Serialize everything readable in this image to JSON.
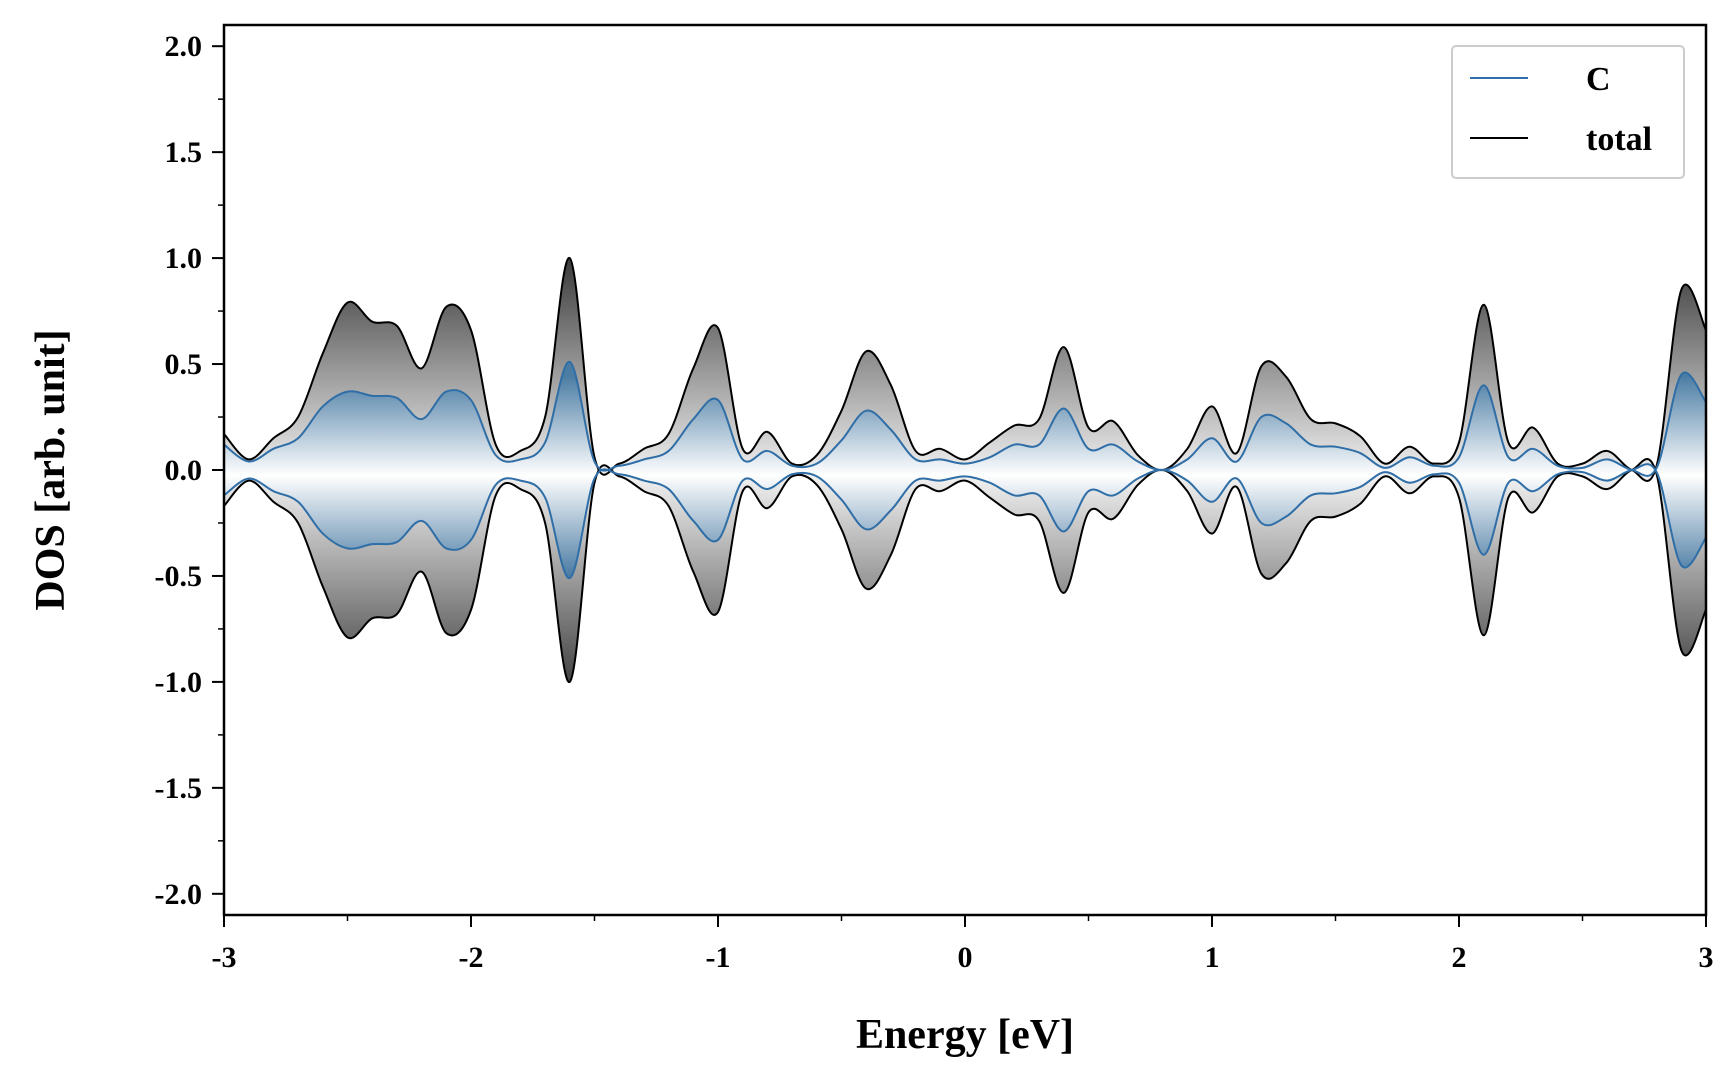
{
  "chart_data": {
    "type": "area",
    "xlabel": "Energy [eV]",
    "ylabel": "DOS [arb. unit]",
    "xlim": [
      -3,
      3
    ],
    "ylim": [
      -2.1,
      2.1
    ],
    "x_ticks": [
      -3,
      -2,
      -1,
      0,
      1,
      2,
      3
    ],
    "x_tick_labels": [
      "-3",
      "-2",
      "-1",
      "0",
      "1",
      "2",
      "3"
    ],
    "y_ticks": [
      2.0,
      1.5,
      1.0,
      0.5,
      0.0,
      -0.5,
      -1.0,
      -1.5,
      -2.0
    ],
    "y_tick_labels": [
      "2.0",
      "1.5",
      "1.0",
      "0.5",
      "0.0",
      "-0.5",
      "-1.0",
      "-1.5",
      "-2.0"
    ],
    "mirrored_about_zero": true,
    "grid": false,
    "legend_position": "top-right",
    "series": [
      {
        "name": "C",
        "color": "#2f6ea6",
        "fill": "blue-gradient",
        "x": [
          -3.0,
          -2.9,
          -2.8,
          -2.7,
          -2.6,
          -2.5,
          -2.4,
          -2.3,
          -2.2,
          -2.1,
          -2.0,
          -1.9,
          -1.8,
          -1.7,
          -1.6,
          -1.5,
          -1.4,
          -1.3,
          -1.2,
          -1.1,
          -1.0,
          -0.9,
          -0.8,
          -0.7,
          -0.6,
          -0.5,
          -0.4,
          -0.3,
          -0.2,
          -0.1,
          0.0,
          0.1,
          0.2,
          0.3,
          0.4,
          0.5,
          0.6,
          0.7,
          0.8,
          0.9,
          1.0,
          1.1,
          1.2,
          1.3,
          1.4,
          1.5,
          1.6,
          1.7,
          1.8,
          1.9,
          2.0,
          2.1,
          2.2,
          2.3,
          2.4,
          2.5,
          2.6,
          2.7,
          2.8,
          2.9,
          3.0
        ],
        "y": [
          0.12,
          0.04,
          0.1,
          0.15,
          0.3,
          0.37,
          0.35,
          0.34,
          0.24,
          0.37,
          0.33,
          0.07,
          0.05,
          0.13,
          0.51,
          0.04,
          0.02,
          0.05,
          0.09,
          0.24,
          0.33,
          0.05,
          0.09,
          0.02,
          0.03,
          0.14,
          0.28,
          0.19,
          0.05,
          0.05,
          0.03,
          0.06,
          0.12,
          0.12,
          0.29,
          0.1,
          0.12,
          0.04,
          0.0,
          0.05,
          0.15,
          0.04,
          0.25,
          0.22,
          0.12,
          0.11,
          0.08,
          0.01,
          0.06,
          0.02,
          0.06,
          0.4,
          0.06,
          0.1,
          0.02,
          0.01,
          0.05,
          0.0,
          0.01,
          0.45,
          0.32
        ]
      },
      {
        "name": "total",
        "color": "#000000",
        "fill": "gray-gradient",
        "x": [
          -3.0,
          -2.9,
          -2.8,
          -2.7,
          -2.6,
          -2.5,
          -2.4,
          -2.3,
          -2.2,
          -2.1,
          -2.0,
          -1.9,
          -1.8,
          -1.7,
          -1.6,
          -1.5,
          -1.4,
          -1.3,
          -1.2,
          -1.1,
          -1.0,
          -0.9,
          -0.8,
          -0.7,
          -0.6,
          -0.5,
          -0.4,
          -0.3,
          -0.2,
          -0.1,
          0.0,
          0.1,
          0.2,
          0.3,
          0.4,
          0.5,
          0.6,
          0.7,
          0.8,
          0.9,
          1.0,
          1.1,
          1.2,
          1.3,
          1.4,
          1.5,
          1.6,
          1.7,
          1.8,
          1.9,
          2.0,
          2.1,
          2.2,
          2.3,
          2.4,
          2.5,
          2.6,
          2.7,
          2.8,
          2.9,
          3.0
        ],
        "y": [
          0.17,
          0.05,
          0.15,
          0.25,
          0.55,
          0.79,
          0.7,
          0.68,
          0.48,
          0.77,
          0.66,
          0.12,
          0.09,
          0.25,
          1.0,
          0.06,
          0.03,
          0.1,
          0.17,
          0.48,
          0.67,
          0.1,
          0.18,
          0.03,
          0.07,
          0.28,
          0.56,
          0.4,
          0.09,
          0.1,
          0.05,
          0.13,
          0.21,
          0.24,
          0.58,
          0.2,
          0.23,
          0.07,
          0.0,
          0.1,
          0.3,
          0.08,
          0.49,
          0.44,
          0.24,
          0.22,
          0.16,
          0.03,
          0.11,
          0.03,
          0.13,
          0.78,
          0.13,
          0.2,
          0.03,
          0.03,
          0.09,
          0.0,
          0.02,
          0.85,
          0.66
        ]
      }
    ]
  }
}
